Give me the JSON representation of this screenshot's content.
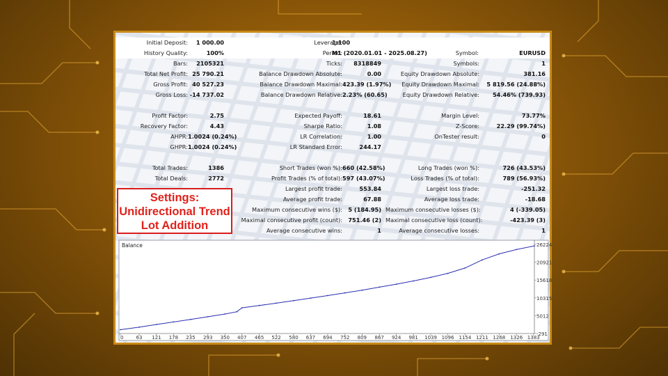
{
  "settings_box": {
    "line1": "Settings:",
    "line2": "Unidirectional Trend",
    "line3": "Lot Addition"
  },
  "report": {
    "rows": [
      {
        "bg": "white",
        "cells": [
          [
            "Initial Deposit:",
            "1 000.00"
          ],
          [
            "Leverage:",
            "1:100"
          ]
        ]
      },
      {
        "bg": "white",
        "cells": [
          [
            "History Quality:",
            "100%"
          ],
          [
            "Period:",
            "M1 (2020.01.01 - 2025.08.27)"
          ],
          [
            "Symbol:",
            "EURUSD"
          ]
        ]
      },
      {
        "bg": "none",
        "cells": [
          [
            "Bars:",
            "2105321"
          ],
          [
            "Ticks:",
            "8318849"
          ],
          [
            "Symbols:",
            "1"
          ]
        ]
      },
      {
        "bg": "none",
        "cells": [
          [
            "Total Net Profit:",
            "25 790.21"
          ],
          [
            "Balance Drawdown Absolute:",
            "0.00"
          ],
          [
            "Equity Drawdown Absolute:",
            "381.16"
          ]
        ]
      },
      {
        "bg": "none",
        "cells": [
          [
            "Gross Profit:",
            "40 527.23"
          ],
          [
            "Balance Drawdown Maximal:",
            "423.39 (1.97%)"
          ],
          [
            "Equity Drawdown Maximal:",
            "5 819.56 (24.88%)"
          ]
        ]
      },
      {
        "bg": "none",
        "cells": [
          [
            "Gross Loss:",
            "-14 737.02"
          ],
          [
            "Balance Drawdown Relative:",
            "2.23% (60.65)"
          ],
          [
            "Equity Drawdown Relative:",
            "54.46% (739.93)"
          ]
        ]
      },
      {
        "bg": "none",
        "cells": []
      },
      {
        "bg": "none",
        "cells": [
          [
            "Profit Factor:",
            "2.75"
          ],
          [
            "Expected Payoff:",
            "18.61"
          ],
          [
            "Margin Level:",
            "73.77%"
          ]
        ]
      },
      {
        "bg": "none",
        "cells": [
          [
            "Recovery Factor:",
            "4.43"
          ],
          [
            "Sharpe Ratio:",
            "1.08"
          ],
          [
            "Z-Score:",
            "22.29 (99.74%)"
          ]
        ]
      },
      {
        "bg": "none",
        "cells": [
          [
            "AHPR:",
            "1.0024 (0.24%)"
          ],
          [
            "LR Correlation:",
            "1.00"
          ],
          [
            "OnTester result:",
            "0"
          ]
        ]
      },
      {
        "bg": "none",
        "cells": [
          [
            "GHPR:",
            "1.0024 (0.24%)"
          ],
          [
            "LR Standard Error:",
            "244.17"
          ]
        ]
      },
      {
        "bg": "none",
        "cells": []
      },
      {
        "bg": "none",
        "cells": [
          [
            "Total Trades:",
            "1386"
          ],
          [
            "Short Trades (won %):",
            "660 (42.58%)"
          ],
          [
            "Long Trades (won %):",
            "726 (43.53%)"
          ]
        ]
      },
      {
        "bg": "none",
        "cells": [
          [
            "Total Deals:",
            "2772"
          ],
          [
            "Profit Trades (% of total):",
            "597 (43.07%)"
          ],
          [
            "Loss Trades (% of total):",
            "789 (56.93%)"
          ]
        ]
      },
      {
        "bg": "none",
        "cells": [
          null,
          [
            "Largest profit trade:",
            "553.84"
          ],
          [
            "Largest loss trade:",
            "-251.32"
          ]
        ]
      },
      {
        "bg": "none",
        "cells": [
          null,
          [
            "Average profit trade:",
            "67.88"
          ],
          [
            "Average loss trade:",
            "-18.68"
          ]
        ]
      },
      {
        "bg": "none",
        "cells": [
          null,
          [
            "Maximum consecutive wins ($):",
            "5 (184.95)"
          ],
          [
            "Maximum consecutive losses ($):",
            "4 (-339.05)"
          ]
        ]
      },
      {
        "bg": "none",
        "cells": [
          null,
          [
            "Maximal consecutive profit (count):",
            "751.46 (2)"
          ],
          [
            "Maximal consecutive loss (count):",
            "-423.39 (3)"
          ]
        ]
      },
      {
        "bg": "none",
        "cells": [
          null,
          [
            "Average consecutive wins:",
            "1"
          ],
          [
            "Average consecutive losses:",
            "1"
          ]
        ]
      }
    ]
  },
  "chart_data": {
    "type": "line",
    "title": "Balance",
    "xlabel": "",
    "ylabel": "",
    "x_ticks": [
      "0",
      "63",
      "121",
      "178",
      "235",
      "293",
      "350",
      "407",
      "465",
      "522",
      "580",
      "637",
      "694",
      "752",
      "809",
      "867",
      "924",
      "981",
      "1039",
      "1096",
      "1154",
      "1211",
      "1268",
      "1326",
      "1383"
    ],
    "y_ticks": [
      "-291",
      "5012",
      "10315",
      "15618",
      "20921",
      "26224"
    ],
    "xlim": [
      0,
      1386
    ],
    "ylim": [
      -291,
      26224
    ],
    "grid": false,
    "series": [
      {
        "color": "#2a2db0",
        "x": [
          0,
          63,
          121,
          178,
          235,
          293,
          350,
          390,
          407,
          465,
          522,
          580,
          637,
          694,
          752,
          809,
          867,
          924,
          981,
          1039,
          1096,
          1154,
          1211,
          1268,
          1326,
          1386
        ],
        "y": [
          840,
          1600,
          2400,
          3150,
          3900,
          4700,
          5500,
          6200,
          7350,
          8050,
          8750,
          9500,
          10250,
          11000,
          11800,
          12600,
          13500,
          14400,
          15350,
          16400,
          17600,
          19200,
          21600,
          23400,
          24700,
          25790
        ]
      }
    ]
  },
  "colors": {
    "frame": "#c88a18",
    "accent_red": "#e0221b",
    "line": "#2a2db0"
  }
}
